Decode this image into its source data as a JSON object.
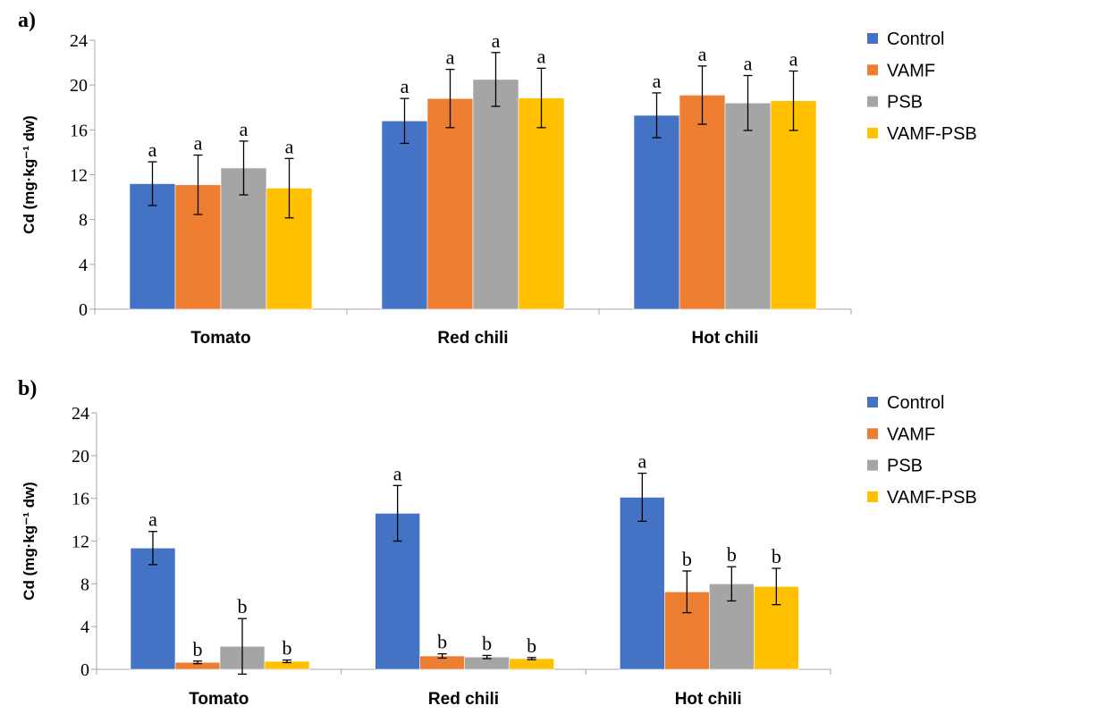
{
  "chart_data": [
    {
      "type": "bar",
      "panel_label": "a)",
      "ylabel": "Cd (mg·kg⁻¹ dw)",
      "ylim": [
        0,
        24
      ],
      "yticks": [
        0,
        4,
        8,
        12,
        16,
        20,
        24
      ],
      "grid": false,
      "legend_position": "right",
      "categories": [
        "Tomato",
        "Red chili",
        "Hot chili"
      ],
      "series": [
        {
          "name": "Control",
          "color": "#4472C4",
          "values": [
            11.2,
            16.8,
            17.3
          ],
          "errors": [
            1.95,
            2.0,
            2.0
          ],
          "letters": [
            "a",
            "a",
            "a"
          ]
        },
        {
          "name": "VAMF",
          "color": "#ED7D31",
          "values": [
            11.1,
            18.8,
            19.1
          ],
          "errors": [
            2.65,
            2.6,
            2.6
          ],
          "letters": [
            "a",
            "a",
            "a"
          ]
        },
        {
          "name": "PSB",
          "color": "#A5A5A5",
          "values": [
            12.6,
            20.5,
            18.4
          ],
          "errors": [
            2.4,
            2.4,
            2.45
          ],
          "letters": [
            "a",
            "a",
            "a"
          ]
        },
        {
          "name": "VAMF-PSB",
          "color": "#FFC000",
          "values": [
            10.8,
            18.85,
            18.6
          ],
          "errors": [
            2.65,
            2.65,
            2.65
          ],
          "letters": [
            "a",
            "a",
            "a"
          ]
        }
      ]
    },
    {
      "type": "bar",
      "panel_label": "b)",
      "ylabel": "Cd (mg·kg⁻¹ dw)",
      "ylim": [
        0,
        24
      ],
      "yticks": [
        0,
        4,
        8,
        12,
        16,
        20,
        24
      ],
      "grid": false,
      "legend_position": "right",
      "categories": [
        "Tomato",
        "Red chili",
        "Hot chili"
      ],
      "series": [
        {
          "name": "Control",
          "color": "#4472C4",
          "values": [
            11.35,
            14.6,
            16.1
          ],
          "errors": [
            1.55,
            2.6,
            2.25
          ],
          "letters": [
            "a",
            "a",
            "a"
          ]
        },
        {
          "name": "VAMF",
          "color": "#ED7D31",
          "values": [
            0.65,
            1.25,
            7.25
          ],
          "errors": [
            0.12,
            0.2,
            1.95
          ],
          "letters": [
            "b",
            "b",
            "b"
          ]
        },
        {
          "name": "PSB",
          "color": "#A5A5A5",
          "values": [
            2.15,
            1.15,
            8.0
          ],
          "errors": [
            2.6,
            0.15,
            1.6
          ],
          "letters": [
            "b",
            "b",
            "b"
          ]
        },
        {
          "name": "VAMF-PSB",
          "color": "#FFC000",
          "values": [
            0.75,
            1.0,
            7.75
          ],
          "errors": [
            0.12,
            0.1,
            1.7
          ],
          "letters": [
            "b",
            "b",
            "b"
          ]
        }
      ]
    }
  ]
}
